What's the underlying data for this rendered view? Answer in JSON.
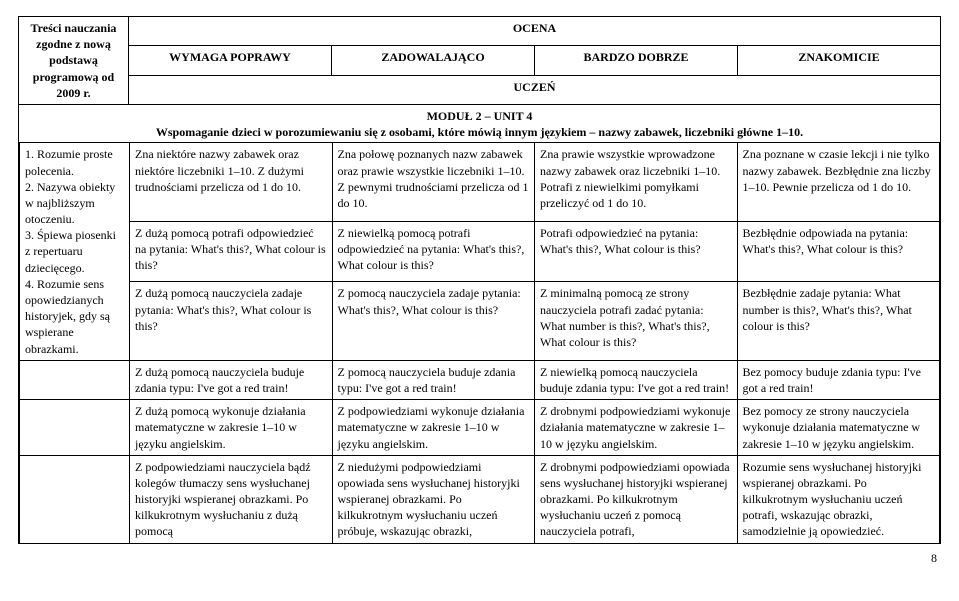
{
  "header": {
    "left_title": "Treści nauczania zgodne z nową podstawą programową od 2009 r.",
    "ocena": "OCENA",
    "levels": [
      "WYMAGA POPRAWY",
      "ZADOWALAJĄCO",
      "BARDZO DOBRZE",
      "ZNAKOMICIE"
    ],
    "uczen": "UCZEŃ"
  },
  "module": {
    "title": "MODUŁ 2 – UNIT 4",
    "subtitle": "Wspomaganie dzieci w porozumiewaniu się z osobami, które mówią innym językiem – nazwy zabawek, liczebniki główne 1–10."
  },
  "left_list": {
    "items": [
      "1. Rozumie proste polecenia.",
      "2. Nazywa obiekty w najbliższym otoczeniu.",
      "3. Śpiewa piosenki z repertuaru dziecięcego.",
      "4. Rozumie sens opowiedzianych historyjek, gdy są wspierane obrazkami."
    ]
  },
  "rows": [
    {
      "c1": "Zna niektóre nazwy zabawek oraz niektóre liczebniki 1–10. Z dużymi trudnościami przelicza od 1 do 10.",
      "c2": "Zna połowę poznanych nazw zabawek oraz prawie wszystkie liczebniki 1–10. Z pewnymi trudnościami przelicza od 1 do 10.",
      "c3": "Zna prawie wszystkie wprowadzone nazwy zabawek oraz liczebniki 1–10. Potrafi z niewielkimi pomyłkami przeliczyć od 1 do 10.",
      "c4": "Zna poznane w czasie lekcji i nie tylko nazwy zabawek. Bezbłędnie zna liczby 1–10. Pewnie przelicza od 1 do 10."
    },
    {
      "c1": "Z dużą pomocą potrafi odpowiedzieć na pytania: What's this?, What colour is this?",
      "c2": "Z niewielką pomocą potrafi odpowiedzieć na pytania: What's this?, What colour is this?",
      "c3": "Potrafi odpowiedzieć na pytania: What's this?, What colour is this?",
      "c4": "Bezbłędnie odpowiada na pytania: What's this?, What colour is this?"
    },
    {
      "c1": "Z dużą pomocą nauczyciela zadaje pytania: What's this?, What colour is this?",
      "c2": "Z pomocą nauczyciela zadaje pytania: What's this?, What colour is this?",
      "c3": "Z minimalną pomocą ze strony nauczyciela potrafi zadać pytania: What number is this?, What's this?, What colour is this?",
      "c4": "Bezbłędnie zadaje pytania: What number is this?, What's this?, What colour is this?"
    },
    {
      "c1": "Z dużą pomocą nauczyciela buduje zdania typu: I've got a red train!",
      "c2": "Z pomocą nauczyciela buduje zdania typu: I've got a red train!",
      "c3": "Z niewielką pomocą nauczyciela buduje zdania typu: I've got a red train!",
      "c4": "Bez pomocy buduje zdania typu: I've got a red train!"
    },
    {
      "c1": "Z dużą pomocą wykonuje działania matematyczne w zakresie 1–10 w języku angielskim.",
      "c2": "Z podpowiedziami wykonuje działania matematyczne w zakresie 1–10 w języku angielskim.",
      "c3": "Z drobnymi podpowiedziami wykonuje działania matematyczne w zakresie 1–10 w języku angielskim.",
      "c4": "Bez pomocy ze strony nauczyciela wykonuje działania matematyczne w zakresie 1–10 w języku angielskim."
    },
    {
      "c1": "Z podpowiedziami nauczyciela bądź kolegów tłumaczy sens wysłuchanej historyjki wspieranej obrazkami. Po kilkukrotnym wysłuchaniu z dużą pomocą",
      "c2": "Z niedużymi podpowiedziami opowiada sens wysłuchanej historyjki wspieranej obrazkami. Po kilkukrotnym wysłuchaniu uczeń próbuje, wskazując obrazki,",
      "c3": "Z drobnymi podpowiedziami opowiada sens wysłuchanej historyjki wspieranej obrazkami. Po kilkukrotnym wysłuchaniu uczeń z pomocą nauczyciela potrafi,",
      "c4": "Rozumie sens wysłuchanej historyjki wspieranej obrazkami. Po kilkukrotnym wysłuchaniu uczeń potrafi, wskazując obrazki, samodzielnie ją opowiedzieć."
    }
  ],
  "page_number": "8"
}
